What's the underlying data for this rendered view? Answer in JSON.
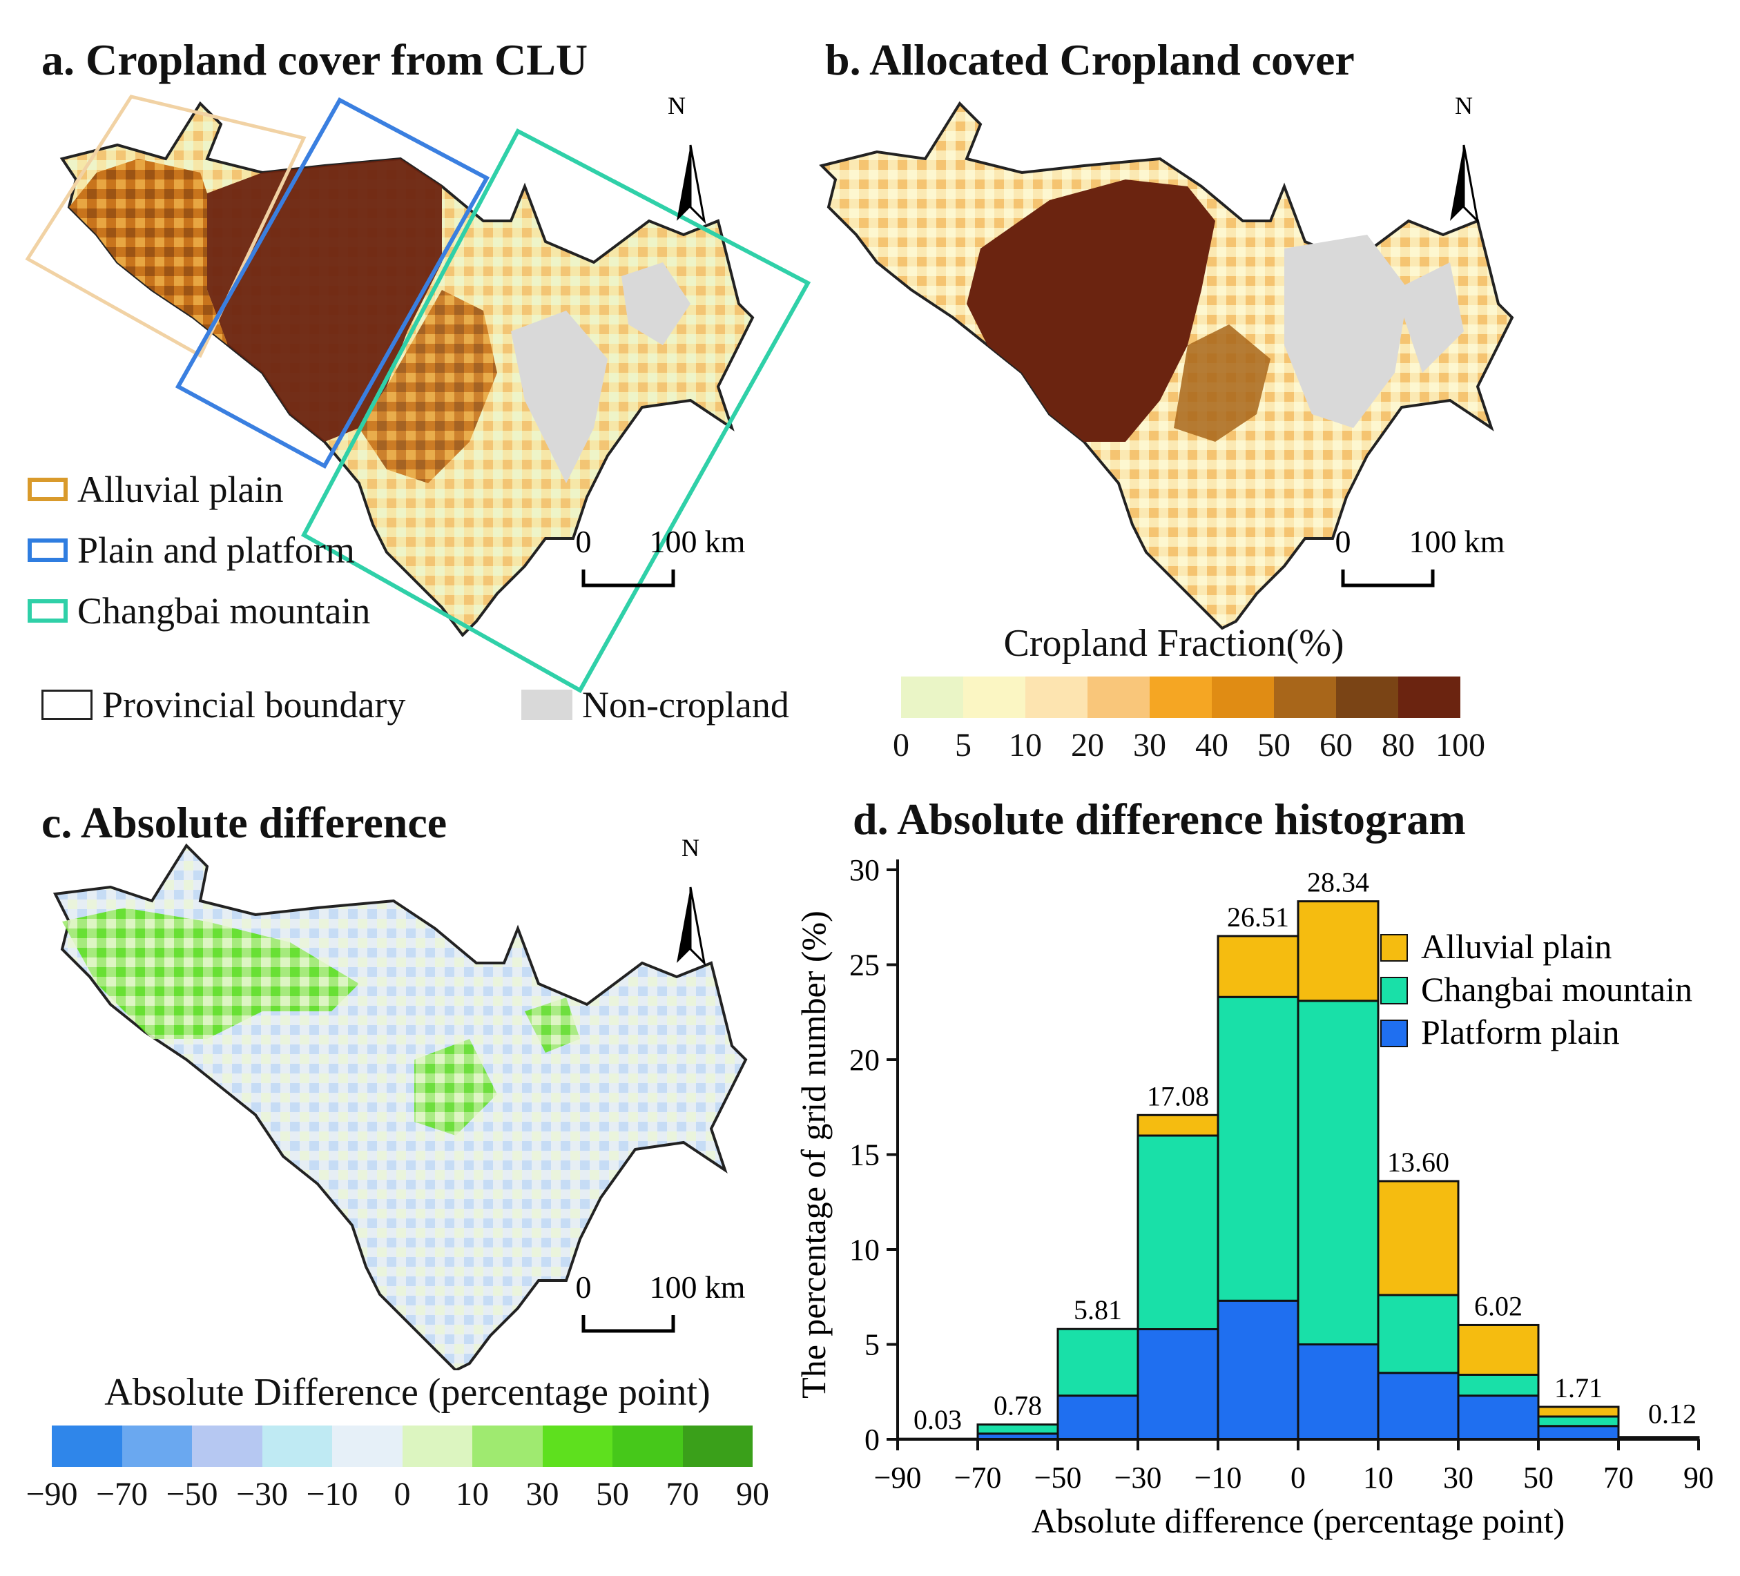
{
  "panel_a": {
    "title": "a. Cropland cover from CLU",
    "north": "N",
    "scale": {
      "zero": "0",
      "hundred": "100",
      "unit": "km"
    },
    "legend": [
      {
        "label": "Alluvial plain",
        "color": "#d99a2b"
      },
      {
        "label": "Plain and platform",
        "color": "#2f7de0"
      },
      {
        "label": "Changbai mountain",
        "color": "#2fd0a8"
      }
    ],
    "boundary_label": "Provincial boundary",
    "noncrop_label": "Non-cropland",
    "noncrop_color": "#d9d9d9"
  },
  "panel_b": {
    "title": "b. Allocated Cropland cover",
    "north": "N",
    "scale": {
      "zero": "0",
      "hundred": "100",
      "unit": "km"
    },
    "colorbar_title": "Cropland Fraction(%)",
    "colorbar_ticks": [
      "0",
      "5",
      "10",
      "20",
      "30",
      "40",
      "50",
      "60",
      "80",
      "100"
    ],
    "colorbar_colors": [
      "#eaf5c6",
      "#fbf6c3",
      "#fde4b0",
      "#f9c67a",
      "#f5a623",
      "#e08c14",
      "#a8661a",
      "#7a4415",
      "#6b2410"
    ]
  },
  "panel_c": {
    "title": "c. Absolute difference",
    "north": "N",
    "scale": {
      "zero": "0",
      "hundred": "100",
      "unit": "km"
    },
    "colorbar_title": "Absolute Difference (percentage point)",
    "colorbar_ticks": [
      "−90",
      "−70",
      "−50",
      "−30",
      "−10",
      "0",
      "10",
      "30",
      "50",
      "70",
      "90"
    ],
    "colorbar_colors": [
      "#2f86ea",
      "#6aa8f0",
      "#b6c8f2",
      "#bfeaf3",
      "#e6f0f8",
      "#dcf5c0",
      "#9fea70",
      "#5ee01e",
      "#46c81a",
      "#3aa01a"
    ]
  },
  "chart_data": {
    "type": "bar",
    "title": "d. Absolute difference histogram",
    "xlabel": "Absolute difference (percentage point)",
    "ylabel": "The percentage of grid number (%)",
    "ylim": [
      0,
      30
    ],
    "yticks": [
      "0",
      "5",
      "10",
      "15",
      "20",
      "25",
      "30"
    ],
    "xticks": [
      "−90",
      "−70",
      "−50",
      "−30",
      "−10",
      "0",
      "10",
      "30",
      "50",
      "70",
      "90"
    ],
    "categories": [
      "−90 to −70",
      "−70 to −50",
      "−50 to −30",
      "−30 to −10",
      "−10 to 0",
      "0 to 10",
      "10 to 30",
      "30 to 50",
      "50 to 70",
      "70 to 90"
    ],
    "totals": [
      "0.03",
      "0.78",
      "5.81",
      "17.08",
      "26.51",
      "28.34",
      "13.60",
      "6.02",
      "1.71",
      "0.12"
    ],
    "stacked": true,
    "series": [
      {
        "name": "Platform plain",
        "color": "#1f6ff0",
        "values": [
          0.02,
          0.3,
          2.3,
          5.8,
          7.3,
          5.0,
          3.5,
          2.3,
          0.7,
          0.1
        ]
      },
      {
        "name": "Changbai mountain",
        "color": "#19e0a8",
        "values": [
          0.01,
          0.48,
          3.51,
          10.2,
          16.0,
          18.1,
          4.1,
          1.1,
          0.5,
          0.02
        ]
      },
      {
        "name": "Alluvial plain",
        "color": "#f5bc10",
        "values": [
          0.0,
          0.0,
          0.0,
          1.08,
          3.21,
          5.24,
          6.0,
          2.62,
          0.51,
          0.0
        ]
      }
    ],
    "legend_order": [
      "Alluvial plain",
      "Changbai mountain",
      "Platform plain"
    ],
    "legend_position": "upper-right"
  }
}
